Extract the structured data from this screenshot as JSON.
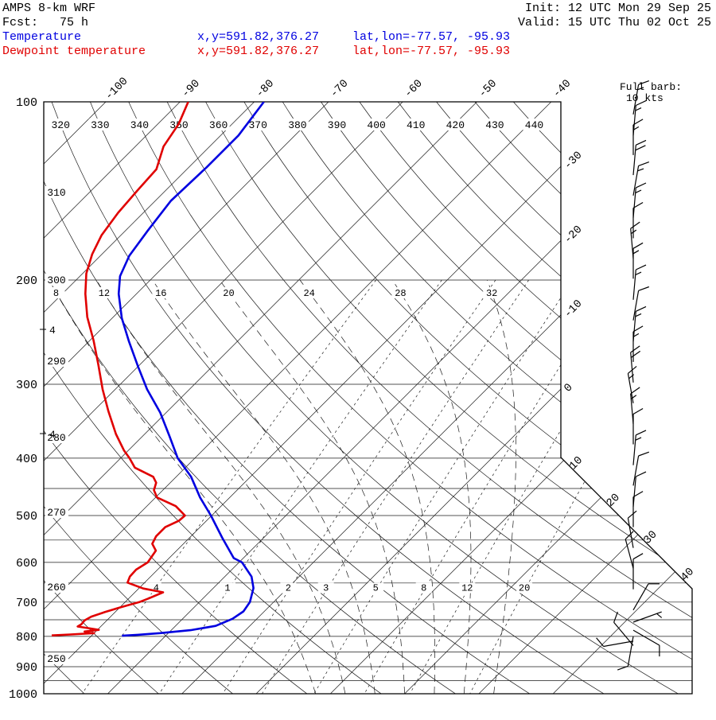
{
  "header": {
    "model": "AMPS 8-km WRF",
    "fcst_label": "Fcst:",
    "fcst_value": "75 h",
    "init_label": "Init:",
    "init_value": "12 UTC Mon 29 Sep 25",
    "valid_label": "Valid:",
    "valid_value": "15 UTC Thu 02 Oct 25"
  },
  "legend": {
    "rows": [
      {
        "name": "temperature",
        "label": "Temperature",
        "xy": "x,y=591.82,376.27",
        "latlon": "lat,lon=-77.57, -95.93",
        "color": "#0000e0"
      },
      {
        "name": "dewpoint",
        "label": "Dewpoint temperature",
        "xy": "x,y=591.82,376.27",
        "latlon": "lat,lon=-77.57, -95.93",
        "color": "#e00000"
      }
    ]
  },
  "wind_legend": {
    "line1": "Full barb:",
    "line2": "10 kts"
  },
  "chart_data": {
    "type": "line",
    "subtype": "skew-t log-p sounding",
    "pressure_axis": {
      "unit": "hPa",
      "scale": "log",
      "range": [
        100,
        1050
      ],
      "tick_labels": [
        100,
        200,
        300,
        400,
        500,
        600,
        700,
        800,
        900,
        1000
      ],
      "lines": [
        100,
        200,
        300,
        400,
        450,
        500,
        550,
        600,
        650,
        700,
        750,
        800,
        850,
        900,
        950,
        1000
      ]
    },
    "temperature_axis": {
      "unit": "C",
      "step": 10,
      "skew_deg": 45,
      "top_labels": [
        -100,
        -90,
        -80,
        -70,
        -60,
        -50,
        -40
      ],
      "right_labels": [
        -30,
        -20,
        -10,
        0,
        10,
        20,
        30,
        40
      ]
    },
    "dry_adiabats": {
      "unit": "K",
      "values": [
        250,
        260,
        270,
        280,
        290,
        300,
        310,
        320,
        330,
        340,
        350,
        360,
        370,
        380,
        390,
        400,
        410,
        420,
        430,
        440
      ],
      "top_labels": [
        320,
        330,
        340,
        350,
        360,
        370,
        380,
        390,
        400,
        410,
        420,
        430,
        440
      ],
      "left_labels": [
        310,
        300,
        290,
        280,
        270,
        260,
        250
      ]
    },
    "moist_adiabats": {
      "unit": "C",
      "values": [
        8,
        12,
        16,
        20,
        24,
        28,
        32
      ]
    },
    "mixing_ratio_lines": {
      "unit": "g/kg",
      "values": [
        0.4,
        1,
        2,
        3,
        5,
        8,
        12,
        20
      ],
      "labels": [
        ".4",
        "1",
        "2",
        "3",
        "5",
        "8",
        "12",
        "20"
      ]
    },
    "left_extra_labels": [
      {
        "text": "4",
        "y": 414
      },
      {
        "text": "4",
        "y": 545
      }
    ],
    "series": [
      {
        "name": "temperature",
        "color": "#0000e0",
        "points": [
          [
            100,
            -78.7
          ],
          [
            114,
            -77.6
          ],
          [
            129,
            -77.6
          ],
          [
            147,
            -77.9
          ],
          [
            165,
            -77.0
          ],
          [
            182,
            -76.1
          ],
          [
            197,
            -74.6
          ],
          [
            211,
            -72.4
          ],
          [
            232,
            -68.7
          ],
          [
            254,
            -64.6
          ],
          [
            280,
            -60.0
          ],
          [
            306,
            -55.7
          ],
          [
            335,
            -50.8
          ],
          [
            367,
            -46.4
          ],
          [
            400,
            -42.3
          ],
          [
            430,
            -38.0
          ],
          [
            466,
            -34.0
          ],
          [
            500,
            -30.1
          ],
          [
            545,
            -25.6
          ],
          [
            590,
            -21.3
          ],
          [
            600,
            -19.6
          ],
          [
            634,
            -16.4
          ],
          [
            663,
            -14.6
          ],
          [
            700,
            -13.2
          ],
          [
            726,
            -12.8
          ],
          [
            747,
            -13.3
          ],
          [
            768,
            -14.6
          ],
          [
            781,
            -17.4
          ],
          [
            790,
            -21.1
          ],
          [
            795,
            -23.9
          ],
          [
            798,
            -25.9
          ]
        ]
      },
      {
        "name": "dewpoint",
        "color": "#e00000",
        "points": [
          [
            100,
            -88.9
          ],
          [
            109,
            -87.2
          ],
          [
            119,
            -86.2
          ],
          [
            130,
            -84.1
          ],
          [
            141,
            -83.8
          ],
          [
            154,
            -83.4
          ],
          [
            168,
            -82.6
          ],
          [
            181,
            -81.3
          ],
          [
            195,
            -79.5
          ],
          [
            211,
            -76.9
          ],
          [
            231,
            -73.5
          ],
          [
            253,
            -69.5
          ],
          [
            278,
            -65.6
          ],
          [
            306,
            -61.7
          ],
          [
            333,
            -58.0
          ],
          [
            364,
            -53.9
          ],
          [
            388,
            -50.6
          ],
          [
            400,
            -48.8
          ],
          [
            415,
            -46.8
          ],
          [
            430,
            -43.1
          ],
          [
            440,
            -41.9
          ],
          [
            453,
            -41.2
          ],
          [
            466,
            -39.8
          ],
          [
            482,
            -36.1
          ],
          [
            500,
            -33.6
          ],
          [
            510,
            -33.7
          ],
          [
            523,
            -34.7
          ],
          [
            542,
            -34.7
          ],
          [
            558,
            -34.2
          ],
          [
            573,
            -32.8
          ],
          [
            600,
            -32.3
          ],
          [
            617,
            -32.9
          ],
          [
            634,
            -32.8
          ],
          [
            649,
            -32.3
          ],
          [
            664,
            -29.4
          ],
          [
            674,
            -26.2
          ],
          [
            690,
            -27.3
          ],
          [
            700,
            -28.1
          ],
          [
            714,
            -29.9
          ],
          [
            728,
            -31.4
          ],
          [
            741,
            -32.6
          ],
          [
            752,
            -33.0
          ],
          [
            763,
            -32.9
          ],
          [
            770,
            -33.1
          ],
          [
            776,
            -31.0
          ],
          [
            780,
            -29.8
          ],
          [
            785,
            -31.5
          ],
          [
            790,
            -30.0
          ],
          [
            794,
            -33.0
          ],
          [
            797,
            -35.4
          ]
        ]
      }
    ],
    "wind_barbs": {
      "full_barb_kts": 10,
      "station_x": 796,
      "levels": [
        [
          105,
          15,
          10
        ],
        [
          114,
          15,
          5
        ],
        [
          123,
          15,
          0
        ],
        [
          133,
          20,
          5
        ],
        [
          144,
          15,
          10
        ],
        [
          157,
          15,
          5
        ],
        [
          170,
          10,
          0
        ],
        [
          184,
          15,
          355
        ],
        [
          199,
          15,
          0
        ],
        [
          216,
          15,
          5
        ],
        [
          234,
          10,
          10
        ],
        [
          254,
          15,
          5
        ],
        [
          275,
          15,
          0
        ],
        [
          298,
          20,
          355
        ],
        [
          323,
          15,
          350
        ],
        [
          350,
          15,
          355
        ],
        [
          379,
          10,
          0
        ],
        [
          411,
          15,
          5
        ],
        [
          445,
          10,
          10
        ],
        [
          483,
          10,
          5
        ],
        [
          523,
          10,
          0
        ],
        [
          567,
          10,
          350
        ],
        [
          614,
          10,
          345
        ],
        [
          666,
          10,
          0
        ],
        [
          722,
          10,
          30
        ],
        [
          757,
          5,
          70
        ],
        [
          781,
          10,
          120
        ],
        [
          800,
          10,
          190
        ],
        [
          815,
          10,
          260
        ],
        [
          829,
          10,
          320
        ]
      ]
    }
  }
}
